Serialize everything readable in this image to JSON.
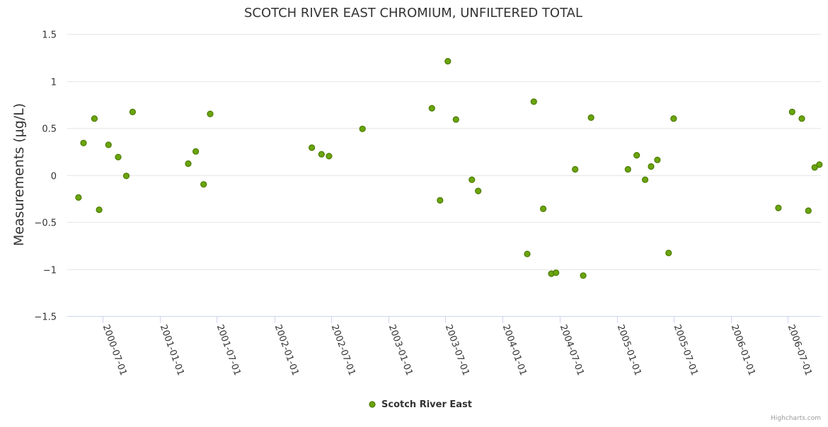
{
  "chart_data": {
    "type": "scatter",
    "title": "SCOTCH RIVER EAST CHROMIUM, UNFILTERED TOTAL",
    "ylabel": "Measurements (µg/L)",
    "xlabel": "",
    "ylim": [
      -1.5,
      1.5
    ],
    "yticks": [
      1.5,
      1,
      0.5,
      0,
      -0.5,
      -1,
      -1.5
    ],
    "ytick_labels": [
      "1.5",
      "1",
      "0.5",
      "0",
      "−0.5",
      "−1",
      "−1.5"
    ],
    "xlim": [
      "2000-03-10",
      "2006-10-15"
    ],
    "xticks": [
      "2000-07-01",
      "2001-01-01",
      "2001-07-01",
      "2002-01-01",
      "2002-07-01",
      "2003-01-01",
      "2003-07-01",
      "2004-01-01",
      "2004-07-01",
      "2005-01-01",
      "2005-07-01",
      "2006-01-01",
      "2006-07-01"
    ],
    "grid": true,
    "legend_position": "bottom-center",
    "series": [
      {
        "name": "Scotch River East",
        "color": "#6aa50d",
        "points": [
          {
            "x": "2000-04-15",
            "y": -0.24
          },
          {
            "x": "2000-05-01",
            "y": 0.34
          },
          {
            "x": "2000-06-05",
            "y": 0.6
          },
          {
            "x": "2000-06-20",
            "y": -0.37
          },
          {
            "x": "2000-07-20",
            "y": 0.32
          },
          {
            "x": "2000-08-20",
            "y": 0.19
          },
          {
            "x": "2000-09-15",
            "y": -0.01
          },
          {
            "x": "2000-10-05",
            "y": 0.67
          },
          {
            "x": "2001-04-01",
            "y": 0.12
          },
          {
            "x": "2001-04-25",
            "y": 0.25
          },
          {
            "x": "2001-05-20",
            "y": -0.1
          },
          {
            "x": "2001-06-10",
            "y": 0.65
          },
          {
            "x": "2002-05-01",
            "y": 0.29
          },
          {
            "x": "2002-06-01",
            "y": 0.22
          },
          {
            "x": "2002-06-25",
            "y": 0.2
          },
          {
            "x": "2002-10-10",
            "y": 0.49
          },
          {
            "x": "2003-05-20",
            "y": 0.71
          },
          {
            "x": "2003-06-15",
            "y": -0.27
          },
          {
            "x": "2003-07-10",
            "y": 1.21
          },
          {
            "x": "2003-08-05",
            "y": 0.59
          },
          {
            "x": "2003-09-25",
            "y": -0.05
          },
          {
            "x": "2003-10-15",
            "y": -0.17
          },
          {
            "x": "2004-03-20",
            "y": -0.84
          },
          {
            "x": "2004-04-10",
            "y": 0.78
          },
          {
            "x": "2004-05-10",
            "y": -0.36
          },
          {
            "x": "2004-06-05",
            "y": -1.05
          },
          {
            "x": "2004-06-20",
            "y": -1.04
          },
          {
            "x": "2004-08-20",
            "y": 0.06
          },
          {
            "x": "2004-09-15",
            "y": -1.07
          },
          {
            "x": "2004-10-10",
            "y": 0.61
          },
          {
            "x": "2005-02-05",
            "y": 0.06
          },
          {
            "x": "2005-03-05",
            "y": 0.21
          },
          {
            "x": "2005-04-01",
            "y": -0.05
          },
          {
            "x": "2005-04-20",
            "y": 0.09
          },
          {
            "x": "2005-05-10",
            "y": 0.16
          },
          {
            "x": "2005-06-15",
            "y": -0.83
          },
          {
            "x": "2005-07-01",
            "y": 0.6
          },
          {
            "x": "2006-06-01",
            "y": -0.35
          },
          {
            "x": "2006-07-15",
            "y": 0.67
          },
          {
            "x": "2006-08-15",
            "y": 0.6
          },
          {
            "x": "2006-09-05",
            "y": -0.38
          },
          {
            "x": "2006-09-25",
            "y": 0.08
          },
          {
            "x": "2006-10-10",
            "y": 0.11
          }
        ]
      }
    ]
  },
  "credits": "Highcharts.com"
}
